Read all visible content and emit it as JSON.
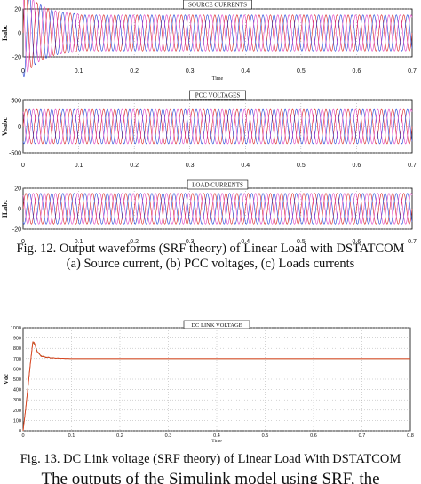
{
  "figure12": {
    "caption_line1": "Fig. 12. Output waveforms (SRF theory) of Linear Load with DSTATCOM",
    "caption_line2": "(a) Source current, (b) PCC voltages, (c) Loads currents"
  },
  "figure13": {
    "caption": "Fig. 13. DC Link voltage (SRF theory) of Linear Load With DSTATCOM"
  },
  "body_text_partial": "The outputs of the Simulink model using SRF, the",
  "colors": {
    "phase_a": "#d62020",
    "phase_b": "#1f3fd6",
    "phase_c": "#e040c0",
    "dc": "#e04020",
    "dc_settle": "#8a6a20"
  },
  "chart_data": [
    {
      "type": "line",
      "title": "SOURCE CURRENTS",
      "xlabel": "Time",
      "ylabel": "Isabc",
      "xlim": [
        0,
        0.7
      ],
      "ylim": [
        -20,
        20
      ],
      "x_ticks": [
        "0",
        "0.1",
        "0.2",
        "0.3",
        "0.4",
        "0.5",
        "0.6",
        "0.7"
      ],
      "y_ticks": [
        "-20",
        "0",
        "20"
      ],
      "waveform": {
        "frequency_hz": 50,
        "phases_deg": [
          0,
          -120,
          120
        ],
        "steady_amplitude": 15,
        "transient_peak": 38,
        "transient_settle_s": 0.1
      },
      "series": [
        {
          "values": "sinusoid phase 0"
        },
        {
          "values": "sinusoid phase -120"
        },
        {
          "values": "sinusoid phase +120"
        }
      ]
    },
    {
      "type": "line",
      "title": "PCC VOLTAGES",
      "xlabel": "",
      "ylabel": "Vsabc",
      "xlim": [
        0,
        0.7
      ],
      "ylim": [
        -500,
        500
      ],
      "x_ticks": [
        "0",
        "0.1",
        "0.2",
        "0.3",
        "0.4",
        "0.5",
        "0.6",
        "0.7"
      ],
      "y_ticks": [
        "-500",
        "0",
        "500"
      ],
      "waveform": {
        "frequency_hz": 50,
        "phases_deg": [
          0,
          -120,
          120
        ],
        "steady_amplitude": 330
      },
      "series": [
        {
          "values": "sinusoid phase 0"
        },
        {
          "values": "sinusoid phase -120"
        },
        {
          "values": "sinusoid phase +120"
        }
      ]
    },
    {
      "type": "line",
      "title": "LOAD CURRENTS",
      "xlabel": "",
      "ylabel": "ILabc",
      "xlim": [
        0,
        0.7
      ],
      "ylim": [
        -20,
        20
      ],
      "x_ticks": [
        "0",
        "0.1",
        "0.2",
        "0.3",
        "0.4",
        "0.5",
        "0.6",
        "0.7"
      ],
      "y_ticks": [
        "-20",
        "0",
        "20"
      ],
      "waveform": {
        "frequency_hz": 50,
        "phases_deg": [
          0,
          -120,
          120
        ],
        "steady_amplitude": 15
      },
      "series": [
        {
          "values": "sinusoid phase 0"
        },
        {
          "values": "sinusoid phase -120"
        },
        {
          "values": "sinusoid phase +120"
        }
      ]
    },
    {
      "type": "line",
      "title": "DC LINK VOLTAGE",
      "xlabel": "Time",
      "ylabel": "Vdc",
      "xlim": [
        0,
        0.8
      ],
      "ylim": [
        0,
        1000
      ],
      "x_ticks": [
        "0",
        "0.1",
        "0.2",
        "0.3",
        "0.4",
        "0.5",
        "0.6",
        "0.7",
        "0.8"
      ],
      "y_ticks": [
        "0",
        "100",
        "200",
        "300",
        "400",
        "500",
        "600",
        "700",
        "800",
        "900",
        "1000"
      ],
      "series": [
        {
          "x": [
            0,
            0.005,
            0.01,
            0.015,
            0.02,
            0.025,
            0.03,
            0.035,
            0.04,
            0.05,
            0.06,
            0.08,
            0.1,
            0.2,
            0.4,
            0.6,
            0.8
          ],
          "values": [
            0,
            200,
            420,
            650,
            860,
            830,
            760,
            735,
            720,
            712,
            706,
            702,
            700,
            700,
            700,
            700,
            700
          ]
        }
      ]
    }
  ]
}
